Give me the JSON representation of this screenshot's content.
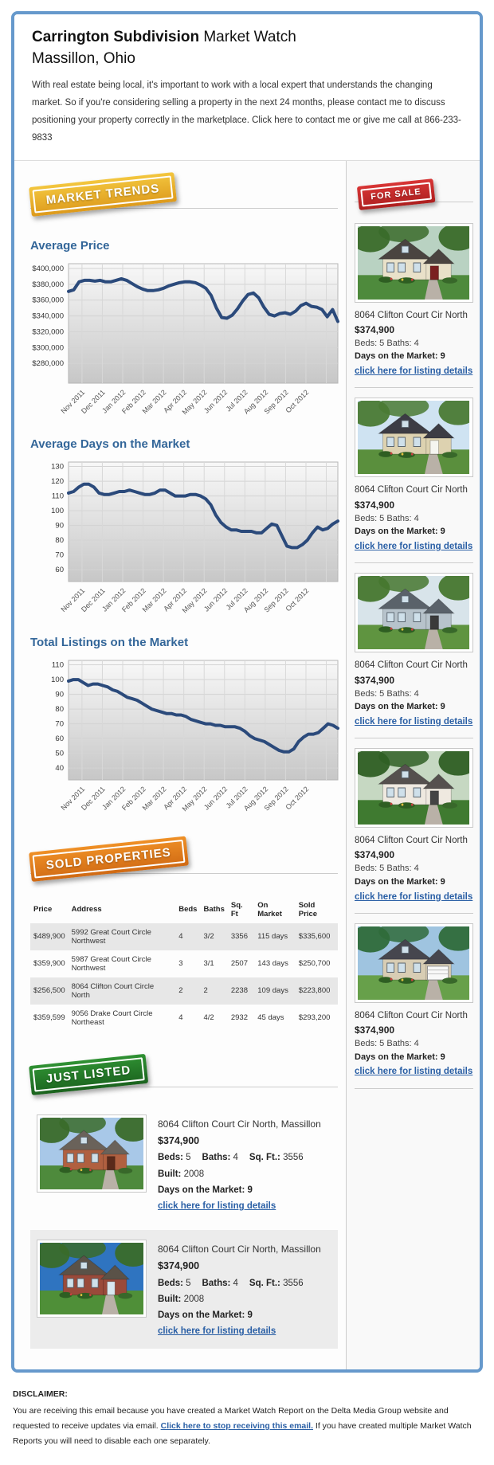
{
  "page": {
    "frame_color": "#6699cc"
  },
  "header": {
    "title_bold": "Carrington Subdivision",
    "title_rest": " Market Watch",
    "subtitle": "Massillon, Ohio",
    "intro": "With real estate being local, it's important to work with a local expert that understands the changing market. So if you're considering selling a property in the next 24 months, please contact me to discuss positioning your property correctly in the marketplace. Click here to contact me or give me call at 866-233-9833"
  },
  "badges": {
    "market_trends": "MARKET TRENDS",
    "for_sale": "FOR SALE",
    "sold_properties": "SOLD PROPERTIES",
    "just_listed": "JUST LISTED"
  },
  "chart_data": [
    {
      "type": "line",
      "title": "Average Price",
      "x_labels": [
        "Nov 2011",
        "Dec 2011",
        "Jan 2012",
        "Feb 2012",
        "Mar 2012",
        "Apr 2012",
        "May 2012",
        "Jun 2012",
        "Jul 2012",
        "Aug 2012",
        "Sep 2012",
        "Oct 2012"
      ],
      "y_ticks": [
        400000,
        380000,
        360000,
        340000,
        320000,
        300000,
        280000
      ],
      "y_tick_labels": [
        "$400,000",
        "$380,000",
        "$360,000",
        "$340,000",
        "$320,000",
        "$300,000",
        "$280,000"
      ],
      "ylim": [
        255000,
        406000
      ],
      "values": [
        371000,
        373000,
        383000,
        385000,
        385000,
        384000,
        385000,
        383000,
        383000,
        385000,
        387000,
        385000,
        381000,
        377000,
        374000,
        372000,
        372000,
        373000,
        375000,
        378000,
        380000,
        382000,
        383000,
        383000,
        382000,
        379000,
        375000,
        366000,
        350000,
        338000,
        337000,
        341000,
        349000,
        359000,
        367000,
        369000,
        363000,
        351000,
        342000,
        340000,
        343000,
        344000,
        342000,
        346000,
        353000,
        356000,
        352000,
        351000,
        348000,
        339000,
        348000,
        333000
      ],
      "line_color": "#2b4a7b",
      "grid": true,
      "legend": "none"
    },
    {
      "type": "line",
      "title": "Average Days on the Market",
      "x_labels": [
        "Nov 2011",
        "Dec 2011",
        "Jan 2012",
        "Feb 2012",
        "Mar 2012",
        "Apr 2012",
        "May 2012",
        "Jun 2012",
        "Jul 2012",
        "Aug 2012",
        "Sep 2012",
        "Oct 2012"
      ],
      "y_ticks": [
        130,
        120,
        110,
        100,
        90,
        80,
        70,
        60
      ],
      "y_tick_labels": [
        "130",
        "120",
        "110",
        "100",
        "90",
        "80",
        "70",
        "60"
      ],
      "ylim": [
        52,
        133
      ],
      "values": [
        112,
        113,
        116,
        118,
        118,
        116,
        112,
        111,
        111,
        112,
        113,
        113,
        114,
        113,
        112,
        111,
        111,
        112,
        114,
        114,
        112,
        110,
        110,
        110,
        111,
        111,
        110,
        108,
        104,
        97,
        92,
        89,
        87,
        87,
        86,
        86,
        86,
        85,
        85,
        88,
        91,
        90,
        83,
        76,
        75,
        75,
        77,
        80,
        85,
        89,
        87,
        88,
        91,
        93
      ],
      "line_color": "#2b4a7b",
      "grid": true,
      "legend": "none"
    },
    {
      "type": "line",
      "title": "Total Listings on the Market",
      "x_labels": [
        "Nov 2011",
        "Dec 2011",
        "Jan 2012",
        "Feb 2012",
        "Mar 2012",
        "Apr 2012",
        "May 2012",
        "Jun 2012",
        "Jul 2012",
        "Aug 2012",
        "Sep 2012",
        "Oct 2012"
      ],
      "y_ticks": [
        110,
        100,
        90,
        80,
        70,
        60,
        50,
        40
      ],
      "y_tick_labels": [
        "110",
        "100",
        "90",
        "80",
        "70",
        "60",
        "50",
        "40"
      ],
      "ylim": [
        32,
        113
      ],
      "values": [
        99,
        100,
        100,
        98,
        96,
        97,
        97,
        96,
        95,
        93,
        92,
        90,
        88,
        87,
        86,
        84,
        82,
        80,
        79,
        78,
        77,
        77,
        76,
        76,
        75,
        73,
        72,
        71,
        70,
        70,
        69,
        69,
        68,
        68,
        68,
        67,
        65,
        62,
        60,
        59,
        58,
        56,
        54,
        52,
        51,
        51,
        53,
        58,
        61,
        63,
        63,
        64,
        67,
        70,
        69,
        67
      ],
      "line_color": "#2b4a7b",
      "grid": true,
      "legend": "none"
    }
  ],
  "for_sale_listings": [
    {
      "address": "8064 Clifton Court Cir North",
      "price": "$374,900",
      "beds_baths": "Beds: 5 Baths: 4",
      "days": "Days on the Market: 9",
      "link": "click here for listing details",
      "photo": {
        "sky": "#b9d2c2",
        "grass": "#4e8a3c",
        "wall": "#e9e1c9",
        "roof": "#4a4440",
        "trees": "#3a6b2a",
        "door": "#7a2020",
        "garage": false
      }
    },
    {
      "address": "8064 Clifton Court Cir North",
      "price": "$374,900",
      "beds_baths": "Beds: 5 Baths: 4",
      "days": "Days on the Market: 9",
      "link": "click here for listing details",
      "photo": {
        "sky": "#cfe3f2",
        "grass": "#5a8f3d",
        "wall": "#ddd2b0",
        "roof": "#3c3c44",
        "trees": "#4a7a34",
        "door": "#f5f5f0",
        "garage": false
      }
    },
    {
      "address": "8064 Clifton Court Cir North",
      "price": "$374,900",
      "beds_baths": "Beds: 5 Baths: 4",
      "days": "Days on the Market: 9",
      "link": "click here for listing details",
      "photo": {
        "sky": "#d8e4ea",
        "grass": "#5f9440",
        "wall": "#b7c3cb",
        "roof": "#5a626a",
        "trees": "#47772f",
        "door": "#3a3a3a",
        "garage": false
      }
    },
    {
      "address": "8064 Clifton Court Cir North",
      "price": "$374,900",
      "beds_baths": "Beds: 5 Baths: 4",
      "days": "Days on the Market: 9",
      "link": "click here for listing details",
      "photo": {
        "sky": "#c6d8c2",
        "grass": "#3f7a30",
        "wall": "#efe9e0",
        "roof": "#55504e",
        "trees": "#2f5f24",
        "door": "#444444",
        "garage": false
      }
    },
    {
      "address": "8064 Clifton Court Cir North",
      "price": "$374,900",
      "beds_baths": "Beds: 5 Baths: 4",
      "days": "Days on the Market: 9",
      "link": "click here for listing details",
      "photo": {
        "sky": "#9fc4e0",
        "grass": "#67a04a",
        "wall": "#d8cdb4",
        "roof": "#46464e",
        "trees": "#2f6b3a",
        "door": "#f8f8f8",
        "garage": true
      }
    }
  ],
  "sold_table": {
    "headers": [
      "Price",
      "Address",
      "Beds",
      "Baths",
      "Sq. Ft",
      "On Market",
      "Sold Price"
    ],
    "rows": [
      [
        "$489,900",
        "5992 Great Court Circle Northwest",
        "4",
        "3/2",
        "3356",
        "115 days",
        "$335,600"
      ],
      [
        "$359,900",
        "5987 Great Court Circle Northwest",
        "3",
        "3/1",
        "2507",
        "143 days",
        "$250,700"
      ],
      [
        "$256,500",
        "8064 Clifton Court Circle North",
        "2",
        "2",
        "2238",
        "109 days",
        "$223,800"
      ],
      [
        "$359,599",
        "9056 Drake Court Circle Northeast",
        "4",
        "4/2",
        "2932",
        "45 days",
        "$293,200"
      ]
    ]
  },
  "just_listed": [
    {
      "address": "8064 Clifton Court Cir North, Massillon",
      "price": "$374,900",
      "specs": [
        {
          "label": "Beds:",
          "value": "5"
        },
        {
          "label": "Baths:",
          "value": "4"
        },
        {
          "label": "Sq. Ft.:",
          "value": "3556"
        },
        {
          "label": "Built:",
          "value": "2008"
        }
      ],
      "days": "Days on the Market: 9",
      "link": "click here for listing details",
      "photo": {
        "sky": "#a8c8e8",
        "grass": "#4e8a3c",
        "wall": "#b06040",
        "roof": "#6a625a",
        "trees": "#3a6b2a",
        "door": "#5a2a1a",
        "garage": false
      }
    },
    {
      "address": "8064 Clifton Court Cir North, Massillon",
      "price": "$374,900",
      "specs": [
        {
          "label": "Beds:",
          "value": "5"
        },
        {
          "label": "Baths:",
          "value": "4"
        },
        {
          "label": "Sq. Ft.:",
          "value": "3556"
        },
        {
          "label": "Built:",
          "value": "2008"
        }
      ],
      "days": "Days on the Market: 9",
      "link": "click here for listing details",
      "photo": {
        "sky": "#2f74c0",
        "grass": "#4f8f38",
        "wall": "#9a4a3a",
        "roof": "#5a5248",
        "trees": "#3a6b2a",
        "door": "#d8e8f0",
        "garage": false
      }
    }
  ],
  "disclaimer": {
    "heading": "DISCLAIMER:",
    "before": "You are receiving this email because you have created a Market Watch Report on the Delta Media Group website and requested to receive updates via email. ",
    "link": "Click here to stop receiving this email.",
    "after": " If you have created multiple Market Watch Reports you will need to disable each one separately."
  }
}
